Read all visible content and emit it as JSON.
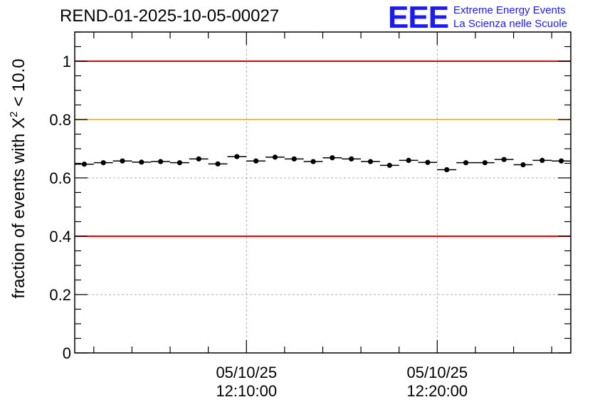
{
  "header": {
    "run_id": "REND-01-2025-10-05-00027"
  },
  "logo": {
    "mark": "EEE",
    "line1": "Extreme Energy Events",
    "line2": "La Scienza nelle Scuole",
    "color": "#1a1aff"
  },
  "chart_data": {
    "type": "scatter",
    "title": "REND-01-2025-10-05-00027",
    "ylabel_prefix": "fraction of events with ",
    "ylabel_symbol": "X",
    "ylabel_power": "2",
    "ylabel_suffix": " < 10.0",
    "xlabel": "",
    "xlim_minutes": [
      0,
      26
    ],
    "ylim": [
      0,
      1.1
    ],
    "yticks": [
      0,
      0.2,
      0.4,
      0.6,
      0.8,
      1
    ],
    "ytick_labels": [
      "0",
      "0.2",
      "0.4",
      "0.6",
      "0.8",
      "1"
    ],
    "xticks": [
      {
        "minute": 9.0,
        "date": "05/10/25",
        "time": "12:10:00"
      },
      {
        "minute": 19.0,
        "date": "05/10/25",
        "time": "12:20:00"
      }
    ],
    "bin_width_minutes": 1.0,
    "reference_lines": [
      {
        "y": 1.0,
        "color": "#e00000",
        "label": "upper-red"
      },
      {
        "y": 0.8,
        "color": "#ffc000",
        "label": "yellow"
      },
      {
        "y": 0.4,
        "color": "#e00000",
        "label": "lower-red"
      }
    ],
    "grid": true,
    "series": [
      {
        "name": "fraction",
        "x_minutes": [
          0.5,
          1.5,
          2.5,
          3.5,
          4.5,
          5.5,
          6.5,
          7.5,
          8.5,
          9.5,
          10.5,
          11.5,
          12.5,
          13.5,
          14.5,
          15.5,
          16.5,
          17.5,
          18.5,
          19.5,
          20.5,
          21.5,
          22.5,
          23.5,
          24.5,
          25.5
        ],
        "values": [
          0.647,
          0.652,
          0.658,
          0.654,
          0.656,
          0.652,
          0.665,
          0.648,
          0.673,
          0.658,
          0.671,
          0.665,
          0.656,
          0.669,
          0.665,
          0.656,
          0.643,
          0.66,
          0.653,
          0.628,
          0.652,
          0.652,
          0.663,
          0.645,
          0.66,
          0.658
        ],
        "errors": [
          0.006,
          0.006,
          0.006,
          0.006,
          0.006,
          0.006,
          0.006,
          0.006,
          0.006,
          0.006,
          0.006,
          0.006,
          0.006,
          0.006,
          0.006,
          0.006,
          0.006,
          0.006,
          0.006,
          0.006,
          0.006,
          0.006,
          0.006,
          0.006,
          0.006,
          0.006
        ]
      }
    ]
  }
}
